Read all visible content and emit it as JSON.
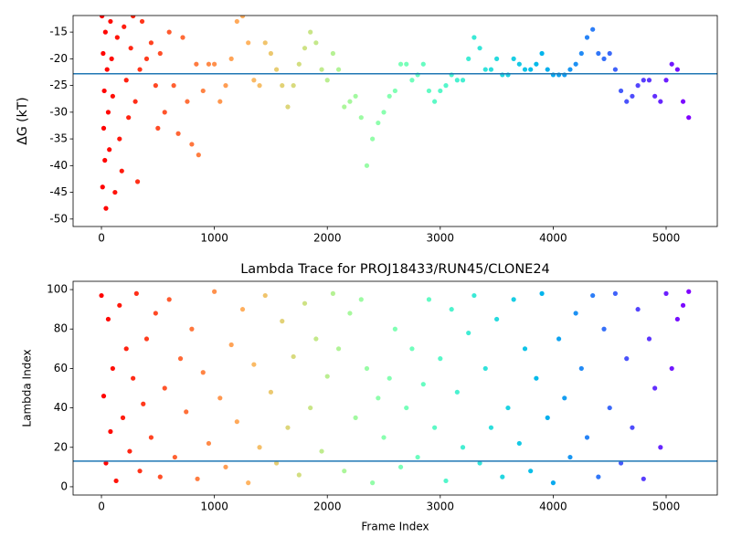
{
  "chart_data": [
    {
      "type": "scatter",
      "ylabel": "ΔG (kT)",
      "colormap": "rainbow_r",
      "hline": -22.8,
      "hline_color": "#1f77b4",
      "xlim": [
        -251,
        5453
      ],
      "ylim": [
        -51.4,
        -11.9
      ],
      "xticks": [
        0,
        1000,
        2000,
        3000,
        4000,
        5000
      ],
      "yticks": [
        -50,
        -45,
        -40,
        -35,
        -30,
        -25,
        -20,
        -15
      ],
      "x": [
        5,
        10,
        15,
        20,
        25,
        30,
        35,
        40,
        50,
        60,
        70,
        80,
        90,
        100,
        120,
        140,
        160,
        180,
        200,
        220,
        240,
        260,
        280,
        300,
        320,
        340,
        360,
        400,
        440,
        480,
        500,
        520,
        560,
        600,
        640,
        680,
        720,
        760,
        800,
        840,
        860,
        900,
        950,
        1000,
        1050,
        1100,
        1150,
        1200,
        1250,
        1300,
        1350,
        1400,
        1450,
        1500,
        1550,
        1600,
        1650,
        1700,
        1750,
        1800,
        1850,
        1900,
        1950,
        2000,
        2050,
        2100,
        2150,
        2200,
        2250,
        2300,
        2350,
        2400,
        2450,
        2500,
        2550,
        2600,
        2650,
        2700,
        2750,
        2800,
        2850,
        2900,
        2950,
        3000,
        3050,
        3100,
        3150,
        3200,
        3250,
        3300,
        3350,
        3400,
        3450,
        3500,
        3550,
        3600,
        3650,
        3700,
        3750,
        3800,
        3850,
        3900,
        3950,
        4000,
        4050,
        4100,
        4150,
        4200,
        4250,
        4300,
        4350,
        4400,
        4450,
        4500,
        4550,
        4600,
        4650,
        4700,
        4750,
        4800,
        4850,
        4900,
        4950,
        5000,
        5050,
        5100,
        5150,
        5200
      ],
      "values": [
        -12,
        -44,
        -19,
        -33,
        -26,
        -39,
        -15,
        -48,
        -22,
        -30,
        -37,
        -13,
        -20,
        -27,
        -45,
        -16,
        -35,
        -41,
        -14,
        -24,
        -31,
        -18,
        -12,
        -28,
        -43,
        -22,
        -13,
        -20,
        -17,
        -25,
        -33,
        -19,
        -30,
        -15,
        -25,
        -34,
        -16,
        -28,
        -36,
        -21,
        -38,
        -26,
        -21,
        -21,
        -28,
        -25,
        -20,
        -13,
        -12,
        -17,
        -24,
        -25,
        -17,
        -19,
        -22,
        -25,
        -29,
        -25,
        -21,
        -18,
        -15,
        -17,
        -22,
        -24,
        -19,
        -22,
        -29,
        -28,
        -27,
        -31,
        -40,
        -35,
        -32,
        -30,
        -27,
        -26,
        -21,
        -21,
        -24,
        -23,
        -21,
        -26,
        -28,
        -26,
        -25,
        -23,
        -24,
        -24,
        -20,
        -16,
        -18,
        -22,
        -22,
        -20,
        -23,
        -23,
        -20,
        -21,
        -22,
        -22,
        -21,
        -19,
        -22,
        -23,
        -23,
        -23,
        -22,
        -21,
        -19,
        -16,
        -14.5,
        -19,
        -20,
        -19,
        -22,
        -26,
        -28,
        -27,
        -25,
        -24,
        -24,
        -27,
        -28,
        -24,
        -21,
        -22,
        -28,
        -31
      ]
    },
    {
      "type": "scatter",
      "title": "Lambda Trace for PROJ18433/RUN45/CLONE24",
      "xlabel": "Frame Index",
      "ylabel": "Lambda Index",
      "colormap": "rainbow_r",
      "hline": 13,
      "hline_color": "#1f77b4",
      "xlim": [
        -251,
        5453
      ],
      "ylim": [
        -4.2,
        104.2
      ],
      "xticks": [
        0,
        1000,
        2000,
        3000,
        4000,
        5000
      ],
      "yticks": [
        0,
        20,
        40,
        60,
        80,
        100
      ],
      "x": [
        0,
        20,
        40,
        60,
        80,
        100,
        130,
        160,
        190,
        220,
        250,
        280,
        310,
        340,
        370,
        400,
        440,
        480,
        520,
        560,
        600,
        650,
        700,
        750,
        800,
        850,
        900,
        950,
        1000,
        1050,
        1100,
        1150,
        1200,
        1250,
        1300,
        1350,
        1400,
        1450,
        1500,
        1550,
        1600,
        1650,
        1700,
        1750,
        1800,
        1850,
        1900,
        1950,
        2000,
        2050,
        2100,
        2150,
        2200,
        2250,
        2300,
        2350,
        2400,
        2450,
        2500,
        2550,
        2600,
        2650,
        2700,
        2750,
        2800,
        2850,
        2900,
        2950,
        3000,
        3050,
        3100,
        3150,
        3200,
        3250,
        3300,
        3350,
        3400,
        3450,
        3500,
        3550,
        3600,
        3650,
        3700,
        3750,
        3800,
        3850,
        3900,
        3950,
        4000,
        4050,
        4100,
        4150,
        4200,
        4250,
        4300,
        4350,
        4400,
        4450,
        4500,
        4550,
        4600,
        4650,
        4700,
        4750,
        4800,
        4850,
        4900,
        4950,
        5000,
        5050,
        5100,
        5150,
        5200
      ],
      "values": [
        97,
        46,
        12,
        85,
        28,
        60,
        3,
        92,
        35,
        70,
        18,
        55,
        98,
        8,
        42,
        75,
        25,
        88,
        5,
        50,
        95,
        15,
        65,
        38,
        80,
        4,
        58,
        22,
        99,
        45,
        10,
        72,
        33,
        90,
        2,
        62,
        20,
        97,
        48,
        12,
        84,
        30,
        66,
        6,
        93,
        40,
        75,
        18,
        56,
        98,
        70,
        8,
        88,
        35,
        95,
        60,
        2,
        45,
        25,
        55,
        80,
        10,
        40,
        70,
        15,
        52,
        95,
        30,
        65,
        3,
        90,
        48,
        20,
        78,
        97,
        12,
        60,
        30,
        85,
        5,
        40,
        95,
        22,
        70,
        8,
        55,
        98,
        35,
        2,
        75,
        45,
        15,
        88,
        60,
        25,
        97,
        5,
        80,
        40,
        98,
        12,
        65,
        30,
        90,
        4,
        75,
        50,
        20,
        98,
        60,
        85,
        92,
        99
      ]
    }
  ]
}
